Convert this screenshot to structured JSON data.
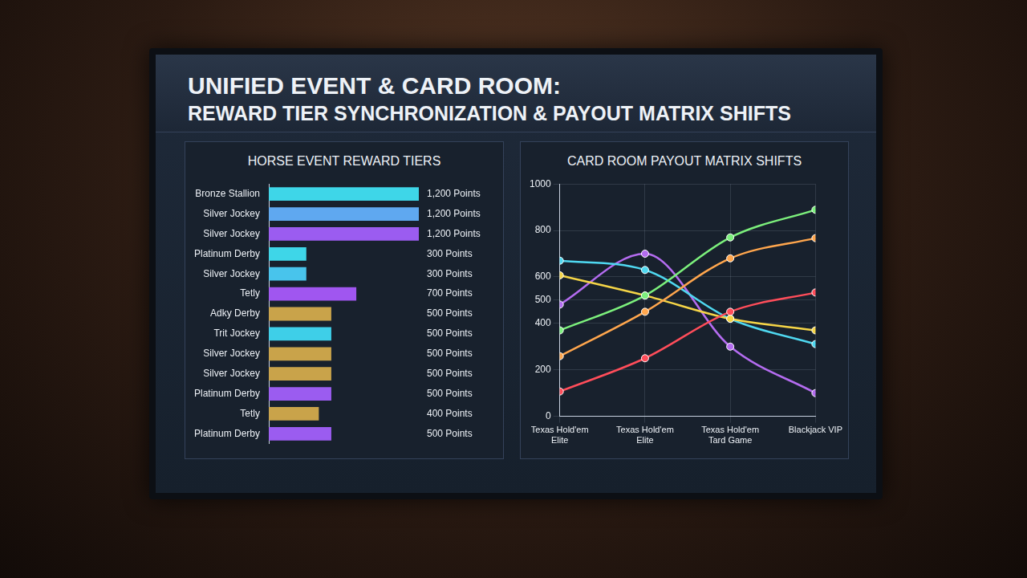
{
  "title": "UNIFIED EVENT & CARD ROOM:",
  "subtitle": "REWARD TIER SYNCHRONIZATION & PAYOUT MATRIX SHIFTS",
  "chart_data": [
    {
      "type": "bar",
      "title": "HORSE EVENT REWARD TIERS",
      "orientation": "horizontal",
      "categories": [
        "Bronze Stallion",
        "Silver Jockey",
        "Silver Jockey",
        "Platinum Derby",
        "Silver Jockey",
        "Tetly",
        "Adky Derby",
        "Trit Jockey",
        "Silver Jockey",
        "Silver Jockey",
        "Platinum Derby",
        "Tetly",
        "Platinum Derby"
      ],
      "values": [
        1200,
        1200,
        1200,
        300,
        300,
        700,
        500,
        500,
        500,
        500,
        500,
        400,
        500
      ],
      "value_labels": [
        "1,200 Points",
        "1,200 Points",
        "1,200 Points",
        "300 Points",
        "300 Points",
        "700 Points",
        "500 Points",
        "500 Points",
        "500 Points",
        "500 Points",
        "500 Points",
        "400 Points",
        "500 Points"
      ],
      "colors": [
        "#3ed6e8",
        "#5fa8f0",
        "#9b5cf0",
        "#3ed6e8",
        "#48c4ec",
        "#a056f0",
        "#c9a34a",
        "#3ecfe8",
        "#c9a34a",
        "#c9a34a",
        "#9b5cf0",
        "#c9a34a",
        "#9b5cf0"
      ],
      "xlim": [
        0,
        1200
      ],
      "data_labels": true,
      "tick_labels": "y",
      "grid": false
    },
    {
      "type": "line",
      "title": "CARD ROOM PAYOUT MATRIX SHIFTS",
      "categories": [
        "Texas Hold'em Elite",
        "Texas Hold'em Elite",
        "Texas Hold'em Tard Game",
        "Blackjack VIP"
      ],
      "ylim": [
        0,
        1000
      ],
      "yticks": [
        0,
        200,
        400,
        500,
        600,
        800,
        1000
      ],
      "grid": true,
      "marker": "circle",
      "series": [
        {
          "color": "#7cf07c",
          "values": [
            370,
            520,
            770,
            889
          ]
        },
        {
          "color": "#ffa64d",
          "values": [
            259,
            450,
            680,
            767
          ]
        },
        {
          "color": "#ff4d5a",
          "values": [
            107,
            250,
            450,
            533
          ]
        },
        {
          "color": "#f5d547",
          "values": [
            607,
            520,
            420,
            370
          ]
        },
        {
          "color": "#4fd8f0",
          "values": [
            670,
            630,
            420,
            311
          ]
        },
        {
          "color": "#b46cf0",
          "values": [
            481,
            700,
            300,
            100
          ]
        }
      ]
    }
  ]
}
